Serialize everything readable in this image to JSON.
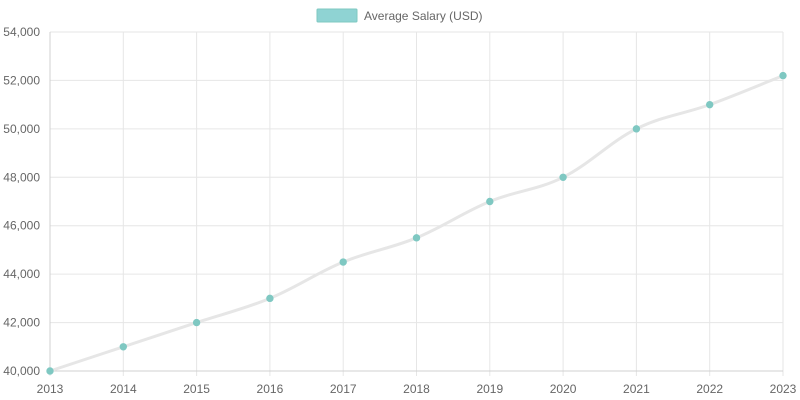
{
  "chart_data": {
    "type": "line",
    "legend_position": "top",
    "grid": true,
    "x": [
      "2013",
      "2014",
      "2015",
      "2016",
      "2017",
      "2018",
      "2019",
      "2020",
      "2021",
      "2022",
      "2023"
    ],
    "series": [
      {
        "name": "Average Salary (USD)",
        "values": [
          40000,
          41000,
          42000,
          43000,
          44500,
          45500,
          47000,
          48000,
          50000,
          51000,
          52200
        ],
        "line_color": "#e6e6e6",
        "point_color": "#7fc8c2",
        "legend_fill": "#8fd3d3",
        "legend_stroke": "#7fc8c2"
      }
    ],
    "ylim": [
      40000,
      54000
    ],
    "y_ticks": [
      40000,
      42000,
      44000,
      46000,
      48000,
      50000,
      52000,
      54000
    ],
    "y_tick_labels": [
      "40,000",
      "42,000",
      "44,000",
      "46,000",
      "48,000",
      "50,000",
      "52,000",
      "54,000"
    ],
    "colors": {
      "grid": "#e6e6e6",
      "axis": "#d0d0d0",
      "text": "#666666"
    }
  }
}
